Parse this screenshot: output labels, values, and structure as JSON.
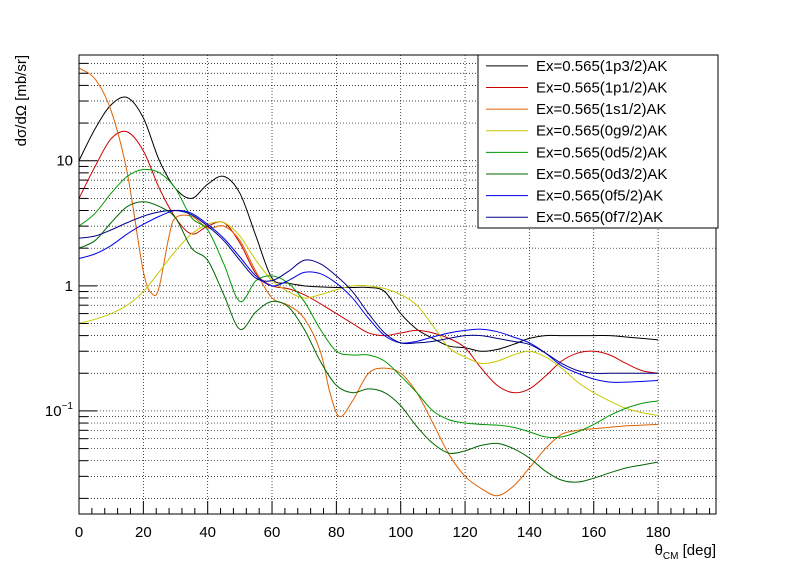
{
  "chart_data": {
    "type": "line",
    "xlabel_main": "θ",
    "xlabel_sub": "CM",
    "xlabel_unit": " [deg]",
    "ylabel": "dσ/dΩ [mb/sr]",
    "xlim": [
      0,
      198
    ],
    "ylim": [
      0.015,
      70
    ],
    "yscale": "log",
    "grid": true,
    "legend_position": "top-right",
    "x_ticks": [
      0,
      20,
      40,
      60,
      80,
      100,
      120,
      140,
      160,
      180
    ],
    "x_tick_labels": [
      "0",
      "20",
      "40",
      "60",
      "80",
      "100",
      "120",
      "140",
      "160",
      "180"
    ],
    "y_ticks": [
      {
        "value": 0.1,
        "base": "10",
        "exp": "−1"
      },
      {
        "value": 1,
        "base": "1",
        "exp": ""
      },
      {
        "value": 10,
        "base": "10",
        "exp": ""
      }
    ],
    "series": [
      {
        "name": "Ex=0.565(1p3/2)AK",
        "color": "#000000",
        "x": [
          0,
          5,
          10,
          15,
          20,
          25,
          30,
          35,
          40,
          45,
          50,
          55,
          60,
          65,
          70,
          75,
          80,
          85,
          90,
          95,
          100,
          105,
          110,
          115,
          120,
          125,
          130,
          135,
          140,
          145,
          150,
          155,
          160,
          165,
          170,
          175,
          180
        ],
        "y": [
          10,
          18,
          28,
          32,
          22,
          10,
          6,
          5,
          6.5,
          7.5,
          5.5,
          2.5,
          1.15,
          1.05,
          1,
          0.98,
          0.97,
          0.97,
          0.97,
          0.9,
          0.6,
          0.45,
          0.38,
          0.33,
          0.32,
          0.3,
          0.31,
          0.34,
          0.38,
          0.4,
          0.4,
          0.4,
          0.4,
          0.4,
          0.39,
          0.38,
          0.37
        ]
      },
      {
        "name": "Ex=0.565(1p1/2)AK",
        "color": "#cc0000",
        "x": [
          0,
          5,
          10,
          15,
          20,
          25,
          30,
          35,
          40,
          45,
          50,
          55,
          60,
          65,
          70,
          75,
          80,
          85,
          90,
          95,
          100,
          105,
          110,
          115,
          120,
          125,
          130,
          135,
          140,
          145,
          150,
          155,
          160,
          165,
          170,
          175,
          180
        ],
        "y": [
          5,
          9,
          15,
          17,
          12,
          6,
          3.5,
          2.6,
          3,
          3.2,
          2.2,
          1.25,
          1.0,
          0.95,
          0.85,
          0.72,
          0.6,
          0.5,
          0.42,
          0.4,
          0.42,
          0.44,
          0.42,
          0.38,
          0.32,
          0.22,
          0.16,
          0.14,
          0.15,
          0.19,
          0.25,
          0.29,
          0.3,
          0.28,
          0.24,
          0.21,
          0.2
        ]
      },
      {
        "name": "Ex=0.565(1s1/2)AK",
        "color": "#e06000",
        "x": [
          0,
          5,
          10,
          15,
          20,
          23,
          25,
          28,
          30,
          35,
          40,
          45,
          50,
          55,
          60,
          65,
          70,
          75,
          78,
          81,
          85,
          90,
          95,
          100,
          105,
          110,
          115,
          120,
          125,
          130,
          135,
          140,
          145,
          150,
          155,
          160,
          165,
          170,
          175,
          180
        ],
        "y": [
          55,
          45,
          25,
          8,
          1.3,
          0.85,
          1.0,
          2.5,
          3.5,
          3.6,
          2.9,
          3.0,
          2.3,
          1.3,
          0.8,
          0.7,
          0.55,
          0.3,
          0.14,
          0.09,
          0.12,
          0.2,
          0.22,
          0.2,
          0.14,
          0.08,
          0.045,
          0.03,
          0.024,
          0.021,
          0.025,
          0.035,
          0.05,
          0.065,
          0.07,
          0.072,
          0.074,
          0.076,
          0.077,
          0.078
        ]
      },
      {
        "name": "Ex=0.565(0g9/2)AK",
        "color": "#c8c800",
        "x": [
          0,
          5,
          10,
          15,
          20,
          25,
          30,
          35,
          40,
          45,
          50,
          55,
          60,
          65,
          70,
          75,
          80,
          85,
          90,
          95,
          100,
          105,
          110,
          115,
          120,
          125,
          130,
          135,
          140,
          145,
          150,
          155,
          160,
          165,
          170,
          175,
          180
        ],
        "y": [
          0.5,
          0.54,
          0.6,
          0.7,
          0.9,
          1.3,
          1.9,
          2.6,
          3.1,
          3.2,
          2.5,
          1.6,
          1.1,
          0.9,
          0.8,
          0.85,
          0.93,
          1.0,
          1.0,
          0.95,
          0.85,
          0.7,
          0.48,
          0.32,
          0.27,
          0.24,
          0.25,
          0.28,
          0.3,
          0.27,
          0.22,
          0.17,
          0.14,
          0.12,
          0.105,
          0.097,
          0.092
        ]
      },
      {
        "name": "Ex=0.565(0d5/2)AK",
        "color": "#009900",
        "x": [
          0,
          5,
          10,
          15,
          20,
          25,
          30,
          35,
          40,
          45,
          50,
          55,
          60,
          65,
          70,
          75,
          80,
          85,
          90,
          95,
          100,
          105,
          110,
          115,
          120,
          125,
          130,
          135,
          140,
          145,
          150,
          155,
          160,
          165,
          170,
          175,
          180
        ],
        "y": [
          3,
          3.8,
          5.5,
          7.5,
          8.5,
          8,
          6,
          3.5,
          2.8,
          1.5,
          0.75,
          1.1,
          1.2,
          1.05,
          0.75,
          0.45,
          0.3,
          0.28,
          0.28,
          0.25,
          0.19,
          0.14,
          0.1,
          0.085,
          0.08,
          0.078,
          0.077,
          0.074,
          0.068,
          0.062,
          0.062,
          0.068,
          0.078,
          0.092,
          0.105,
          0.115,
          0.12
        ]
      },
      {
        "name": "Ex=0.565(0d3/2)AK",
        "color": "#006600",
        "x": [
          0,
          5,
          10,
          15,
          20,
          25,
          30,
          35,
          40,
          45,
          50,
          55,
          60,
          65,
          70,
          75,
          80,
          85,
          90,
          95,
          100,
          105,
          110,
          115,
          120,
          125,
          130,
          135,
          140,
          145,
          150,
          155,
          160,
          165,
          170,
          175,
          180
        ],
        "y": [
          2,
          2.3,
          3.2,
          4.3,
          4.7,
          4.3,
          3.5,
          2,
          1.6,
          0.85,
          0.45,
          0.62,
          0.75,
          0.68,
          0.45,
          0.25,
          0.16,
          0.14,
          0.15,
          0.14,
          0.11,
          0.075,
          0.055,
          0.046,
          0.048,
          0.053,
          0.055,
          0.05,
          0.042,
          0.033,
          0.028,
          0.027,
          0.029,
          0.032,
          0.035,
          0.037,
          0.039
        ]
      },
      {
        "name": "Ex=0.565(0f5/2)AK",
        "color": "#0000ee",
        "x": [
          0,
          5,
          10,
          15,
          20,
          25,
          30,
          35,
          40,
          45,
          50,
          55,
          60,
          65,
          70,
          75,
          80,
          85,
          90,
          95,
          100,
          105,
          110,
          115,
          120,
          125,
          130,
          135,
          140,
          145,
          150,
          155,
          160,
          165,
          170,
          175,
          180
        ],
        "y": [
          1.65,
          1.8,
          2.1,
          2.6,
          3.1,
          3.6,
          4.0,
          3.8,
          3.1,
          2.4,
          1.7,
          1.2,
          1.0,
          1.1,
          1.28,
          1.25,
          1.05,
          0.8,
          0.55,
          0.4,
          0.35,
          0.36,
          0.39,
          0.42,
          0.44,
          0.45,
          0.43,
          0.39,
          0.35,
          0.29,
          0.23,
          0.2,
          0.18,
          0.17,
          0.17,
          0.172,
          0.175
        ]
      },
      {
        "name": "Ex=0.565(0f7/2)AK",
        "color": "#000088",
        "x": [
          0,
          5,
          10,
          15,
          20,
          25,
          30,
          35,
          40,
          45,
          50,
          55,
          60,
          65,
          70,
          75,
          80,
          85,
          90,
          95,
          100,
          105,
          110,
          115,
          120,
          125,
          130,
          135,
          140,
          145,
          150,
          155,
          160,
          165,
          170,
          175,
          180
        ],
        "y": [
          2.4,
          2.5,
          2.8,
          3.2,
          3.6,
          3.9,
          4.0,
          3.7,
          3.0,
          2.3,
          1.6,
          1.15,
          1.1,
          1.3,
          1.6,
          1.5,
          1.2,
          0.9,
          0.6,
          0.42,
          0.35,
          0.35,
          0.36,
          0.38,
          0.4,
          0.4,
          0.38,
          0.36,
          0.34,
          0.29,
          0.24,
          0.21,
          0.2,
          0.2,
          0.2,
          0.2,
          0.2
        ]
      }
    ]
  }
}
